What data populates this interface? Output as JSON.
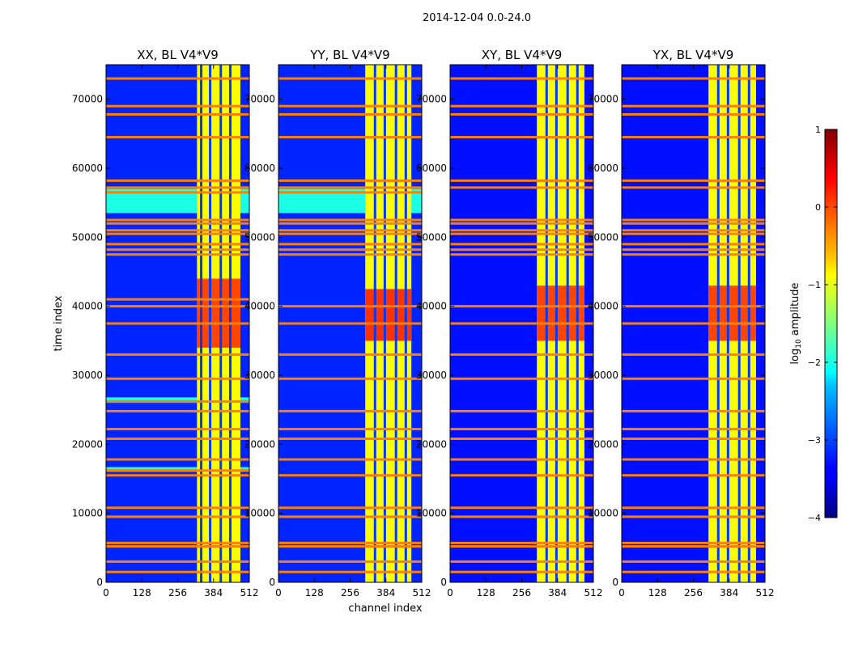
{
  "figure_title": "2014-12-04 0.0-24.0",
  "colormap": "jet",
  "chart_data": {
    "type": "heatmap",
    "xlabel": "channel index",
    "ylabel": "time index",
    "xlim": [
      0,
      512
    ],
    "ylim": [
      0,
      75000
    ],
    "x_ticks": [
      0,
      128,
      256,
      384,
      512
    ],
    "y_ticks": [
      0,
      10000,
      20000,
      30000,
      40000,
      50000,
      60000,
      70000
    ],
    "colorbar": {
      "label": "log10 amplitude",
      "label_text": "log",
      "label_sub": "10",
      "label_rest": " amplitude",
      "range": [
        -4,
        1
      ],
      "ticks": [
        1,
        0,
        -1,
        -2,
        -3,
        -4
      ],
      "tick_labels": [
        "1",
        "0",
        "−1",
        "−2",
        "−3",
        "−4"
      ]
    },
    "panels": [
      {
        "title": "XX, BL V4*V9",
        "background_level": -3.2,
        "bright_band": {
          "x_range": [
            325,
            480
          ],
          "level": -0.9
        },
        "gap_columns": [
          340,
          372,
          410,
          444
        ],
        "flagged_time_rows": [
          1500,
          3000,
          5200,
          5700,
          9500,
          10800,
          15500,
          16200,
          17800,
          20800,
          22200,
          24800,
          26200,
          29500,
          33000,
          37500,
          40000,
          41000,
          47500,
          48200,
          49000,
          50500,
          51000,
          52000,
          52500,
          56500,
          57200,
          58200,
          64500,
          67800,
          69000,
          73000
        ],
        "hot_region": {
          "t_range": [
            34000,
            44000
          ],
          "level": 0.2
        },
        "elevated_time_blocks": [
          [
            16000,
            16700
          ],
          [
            26000,
            26800
          ],
          [
            53500,
            57000
          ]
        ]
      },
      {
        "title": "YY, BL V4*V9",
        "background_level": -3.2,
        "bright_band": {
          "x_range": [
            310,
            475
          ],
          "level": -0.9
        },
        "gap_columns": [
          345,
          380,
          420,
          455
        ],
        "flagged_time_rows": [
          1500,
          3000,
          5200,
          5700,
          9500,
          10800,
          15500,
          17800,
          20800,
          22200,
          24800,
          29500,
          33000,
          37500,
          40000,
          47500,
          48200,
          49000,
          50500,
          51000,
          52000,
          52500,
          56500,
          57200,
          58200,
          64500,
          67800,
          69000,
          73000
        ],
        "hot_region": {
          "t_range": [
            35000,
            42500
          ],
          "level": 0.3
        },
        "elevated_time_blocks": [
          [
            53500,
            57000
          ]
        ]
      },
      {
        "title": "XY, BL V4*V9",
        "background_level": -3.3,
        "bright_band": {
          "x_range": [
            310,
            480
          ],
          "level": -0.9
        },
        "gap_columns": [
          345,
          380,
          420,
          455
        ],
        "flagged_time_rows": [
          1500,
          3000,
          5200,
          5700,
          9500,
          10800,
          15500,
          17800,
          20800,
          22200,
          24800,
          29500,
          33000,
          37500,
          40000,
          47500,
          48200,
          49000,
          50500,
          51000,
          52000,
          52500,
          57200,
          58200,
          64500,
          67800,
          69000,
          73000
        ],
        "hot_region": {
          "t_range": [
            35000,
            43000
          ],
          "level": 0.2
        },
        "elevated_time_blocks": []
      },
      {
        "title": "YX, BL V4*V9",
        "background_level": -3.3,
        "bright_band": {
          "x_range": [
            310,
            480
          ],
          "level": -0.9
        },
        "gap_columns": [
          345,
          380,
          420,
          455
        ],
        "flagged_time_rows": [
          1500,
          3000,
          5200,
          5700,
          9500,
          10800,
          15500,
          17800,
          20800,
          22200,
          24800,
          29500,
          33000,
          37500,
          40000,
          47500,
          48200,
          49000,
          50500,
          51000,
          52000,
          52500,
          57200,
          58200,
          64500,
          67800,
          69000,
          73000
        ],
        "hot_region": {
          "t_range": [
            35000,
            43000
          ],
          "level": 0.2
        },
        "elevated_time_blocks": []
      }
    ]
  }
}
